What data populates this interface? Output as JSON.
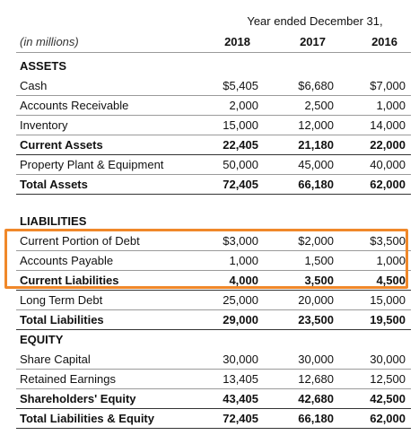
{
  "header": {
    "period": "Year ended December 31,",
    "units": "(in millions)",
    "years": [
      "2018",
      "2017",
      "2016"
    ]
  },
  "assets": {
    "title": "ASSETS",
    "rows": [
      {
        "label": "Cash",
        "values": [
          "$5,405",
          "$6,680",
          "$7,000"
        ],
        "bold": false
      },
      {
        "label": "Accounts Receivable",
        "values": [
          "2,000",
          "2,500",
          "1,000"
        ],
        "bold": false
      },
      {
        "label": "Inventory",
        "values": [
          "15,000",
          "12,000",
          "14,000"
        ],
        "bold": false
      },
      {
        "label": "Current Assets",
        "values": [
          "22,405",
          "21,180",
          "22,000"
        ],
        "bold": true
      },
      {
        "label": "Property Plant & Equipment",
        "values": [
          "50,000",
          "45,000",
          "40,000"
        ],
        "bold": false
      },
      {
        "label": "Total Assets",
        "values": [
          "72,405",
          "66,180",
          "62,000"
        ],
        "bold": true
      }
    ]
  },
  "liabilities": {
    "title": "LIABILITIES",
    "rows": [
      {
        "label": "Current Portion of Debt",
        "values": [
          "$3,000",
          "$2,000",
          "$3,500"
        ],
        "bold": false
      },
      {
        "label": "Accounts Payable",
        "values": [
          "1,000",
          "1,500",
          "1,000"
        ],
        "bold": false
      },
      {
        "label": "Current Liabilities",
        "values": [
          "4,000",
          "3,500",
          "4,500"
        ],
        "bold": true
      },
      {
        "label": "Long Term Debt",
        "values": [
          "25,000",
          "20,000",
          "15,000"
        ],
        "bold": false
      },
      {
        "label": "Total Liabilities",
        "values": [
          "29,000",
          "23,500",
          "19,500"
        ],
        "bold": true
      }
    ]
  },
  "equity": {
    "title": "EQUITY",
    "rows": [
      {
        "label": "Share Capital",
        "values": [
          "30,000",
          "30,000",
          "30,000"
        ],
        "bold": false
      },
      {
        "label": "Retained Earnings",
        "values": [
          "13,405",
          "12,680",
          "12,500"
        ],
        "bold": false
      },
      {
        "label": "Shareholders' Equity",
        "values": [
          "43,405",
          "42,680",
          "42,500"
        ],
        "bold": true
      },
      {
        "label": "Total Liabilities & Equity",
        "values": [
          "72,405",
          "66,180",
          "62,000"
        ],
        "bold": true
      }
    ]
  },
  "highlight_color": "#f0882a"
}
